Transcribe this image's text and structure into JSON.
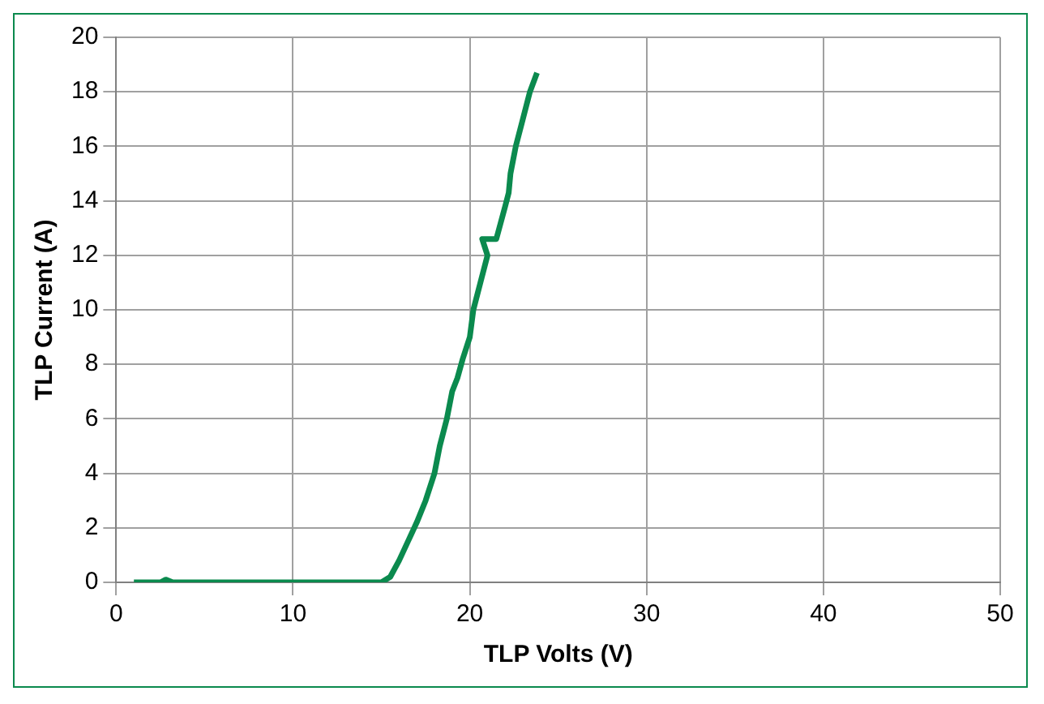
{
  "chart_data": {
    "type": "line",
    "xlabel": "TLP Volts (V)",
    "ylabel": "TLP Current (A)",
    "series": [
      {
        "color": "#0b8a4e",
        "x": [
          1,
          2.5,
          2.8,
          3.2,
          15,
          15.5,
          16,
          16.5,
          17,
          17.5,
          18,
          18.3,
          18.7,
          19,
          19.3,
          19.6,
          20,
          20.2,
          20.6,
          21,
          20.7,
          21.5,
          22,
          22.2,
          22.3,
          22.6,
          23,
          23.4,
          23.8
        ],
        "values": [
          0,
          0,
          0.1,
          0,
          0,
          0.2,
          0.8,
          1.5,
          2.2,
          3,
          4,
          5,
          6,
          7,
          7.5,
          8.2,
          9,
          10,
          11,
          12,
          12.6,
          12.6,
          13.8,
          14.3,
          15,
          16,
          17,
          18,
          18.7
        ]
      }
    ],
    "xlim": [
      0,
      50
    ],
    "xticks": [
      0,
      10,
      20,
      30,
      40,
      50
    ],
    "ylim": [
      0,
      20
    ],
    "yticks": [
      0,
      2,
      4,
      6,
      8,
      10,
      12,
      14,
      16,
      18,
      20
    ],
    "grid": true,
    "legend": false,
    "marker": "none",
    "line_style": "solid"
  }
}
